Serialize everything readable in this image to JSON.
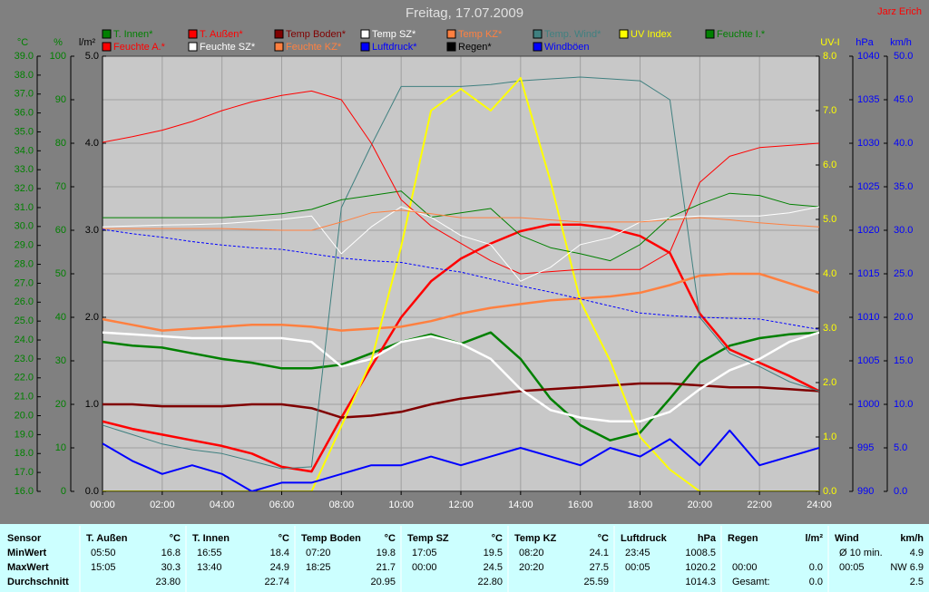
{
  "chart_data": {
    "type": "line",
    "title": "Freitag, 17.07.2009",
    "author": "Jarz Erich",
    "x": [
      0,
      1,
      2,
      3,
      4,
      5,
      6,
      7,
      8,
      9,
      10,
      11,
      12,
      13,
      14,
      15,
      16,
      17,
      18,
      19,
      20,
      21,
      22,
      23,
      24
    ],
    "xlim": [
      0,
      24
    ],
    "xticks": [
      {
        "value": 0,
        "label": "00:00"
      },
      {
        "value": 2,
        "label": "02:00"
      },
      {
        "value": 4,
        "label": "04:00"
      },
      {
        "value": 6,
        "label": "06:00"
      },
      {
        "value": 8,
        "label": "08:00"
      },
      {
        "value": 10,
        "label": "10:00"
      },
      {
        "value": 12,
        "label": "12:00"
      },
      {
        "value": 14,
        "label": "14:00"
      },
      {
        "value": 16,
        "label": "16:00"
      },
      {
        "value": 18,
        "label": "18:00"
      },
      {
        "value": 20,
        "label": "20:00"
      },
      {
        "value": 22,
        "label": "22:00"
      },
      {
        "value": 24,
        "label": "24:00"
      }
    ],
    "grid": true,
    "ylabel": "°C",
    "ycolor": "#008000",
    "ylim": [
      16,
      39
    ],
    "yticks": [
      {
        "value": 16,
        "label": "16.0"
      },
      {
        "value": 17,
        "label": "17.0"
      },
      {
        "value": 18,
        "label": "18.0"
      },
      {
        "value": 19,
        "label": "19.0"
      },
      {
        "value": 20,
        "label": "20.0"
      },
      {
        "value": 21,
        "label": "21.0"
      },
      {
        "value": 22,
        "label": "22.0"
      },
      {
        "value": 23,
        "label": "23.0"
      },
      {
        "value": 24,
        "label": "24.0"
      },
      {
        "value": 25,
        "label": "25.0"
      },
      {
        "value": 26,
        "label": "26.0"
      },
      {
        "value": 27,
        "label": "27.0"
      },
      {
        "value": 28,
        "label": "28.0"
      },
      {
        "value": 29,
        "label": "29.0"
      },
      {
        "value": 30,
        "label": "30.0"
      },
      {
        "value": 31,
        "label": "31.0"
      },
      {
        "value": 32,
        "label": "32.0"
      },
      {
        "value": 33,
        "label": "33.0"
      },
      {
        "value": 34,
        "label": "34.0"
      },
      {
        "value": 35,
        "label": "35.0"
      },
      {
        "value": 36,
        "label": "36.0"
      },
      {
        "value": 37,
        "label": "37.0"
      },
      {
        "value": 38,
        "label": "38.0"
      },
      {
        "value": 39,
        "label": "39.0"
      }
    ],
    "y2label": "%",
    "y2color": "#008000",
    "y2lim": [
      0,
      100
    ],
    "y2ticks": [
      0,
      10,
      20,
      30,
      40,
      50,
      60,
      70,
      80,
      90,
      100
    ],
    "y3label": "l/m²",
    "y3color": "#000000",
    "y3lim": [
      0,
      5
    ],
    "y3ticks": [
      {
        "value": 0,
        "label": "0.0"
      },
      {
        "value": 1,
        "label": "1.0"
      },
      {
        "value": 2,
        "label": "2.0"
      },
      {
        "value": 3,
        "label": "3.0"
      },
      {
        "value": 4,
        "label": "4.0"
      },
      {
        "value": 5,
        "label": "5.0"
      }
    ],
    "y4label": "UV-I",
    "y4color": "#ffff00",
    "y4lim": [
      0,
      8
    ],
    "y4ticks": [
      {
        "value": 0,
        "label": "0.0"
      },
      {
        "value": 1,
        "label": "1.0"
      },
      {
        "value": 2,
        "label": "2.0"
      },
      {
        "value": 3,
        "label": "3.0"
      },
      {
        "value": 4,
        "label": "4.0"
      },
      {
        "value": 5,
        "label": "5.0"
      },
      {
        "value": 6,
        "label": "6.0"
      },
      {
        "value": 7,
        "label": "7.0"
      },
      {
        "value": 8,
        "label": "8.0"
      }
    ],
    "y5label": "hPa",
    "y5color": "#0000ff",
    "y5lim": [
      990,
      1040
    ],
    "y5ticks": [
      990,
      995,
      1000,
      1005,
      1010,
      1015,
      1020,
      1025,
      1030,
      1035,
      1040
    ],
    "y6label": "km/h",
    "y6color": "#0000ff",
    "y6lim": [
      0,
      50
    ],
    "y6ticks": [
      {
        "value": 0,
        "label": "0.0"
      },
      {
        "value": 5,
        "label": "5.0"
      },
      {
        "value": 10,
        "label": "10.0"
      },
      {
        "value": 15,
        "label": "15.0"
      },
      {
        "value": 20,
        "label": "20.0"
      },
      {
        "value": 25,
        "label": "25.0"
      },
      {
        "value": 30,
        "label": "30.0"
      },
      {
        "value": 35,
        "label": "35.0"
      },
      {
        "value": 40,
        "label": "40.0"
      },
      {
        "value": 45,
        "label": "45.0"
      },
      {
        "value": 50,
        "label": "50.0"
      }
    ],
    "series": [
      {
        "name": "T. Innen*",
        "color": "#008000",
        "axis": "y",
        "linewidth": 2.5,
        "values": [
          23.9,
          23.7,
          23.6,
          23.3,
          23.0,
          22.8,
          22.5,
          22.5,
          22.7,
          23.3,
          23.9,
          24.3,
          23.8,
          24.4,
          23.0,
          20.9,
          19.5,
          18.7,
          19.1,
          20.9,
          22.8,
          23.7,
          24.1,
          24.3,
          24.4
        ]
      },
      {
        "name": "T. Außen*",
        "color": "#ff0000",
        "axis": "y",
        "linewidth": 2.5,
        "values": [
          19.7,
          19.3,
          19.0,
          18.7,
          18.4,
          18.0,
          17.3,
          17.05,
          19.9,
          22.6,
          25.2,
          27.1,
          28.3,
          29.1,
          29.75,
          30.1,
          30.1,
          29.9,
          29.5,
          28.6,
          25.4,
          23.5,
          22.8,
          22.1,
          21.3
        ]
      },
      {
        "name": "Temp Boden*",
        "color": "#800000",
        "axis": "y",
        "linewidth": 2.5,
        "values": [
          20.6,
          20.6,
          20.5,
          20.5,
          20.5,
          20.6,
          20.6,
          20.4,
          19.9,
          20.0,
          20.2,
          20.6,
          20.9,
          21.1,
          21.3,
          21.4,
          21.5,
          21.6,
          21.7,
          21.7,
          21.6,
          21.5,
          21.5,
          21.4,
          21.3
        ]
      },
      {
        "name": "Temp SZ*",
        "color": "#ffffff",
        "axis": "y",
        "linewidth": 2.5,
        "values": [
          24.4,
          24.3,
          24.2,
          24.1,
          24.1,
          24.1,
          24.1,
          23.9,
          22.6,
          23.0,
          23.9,
          24.2,
          23.8,
          23.0,
          21.4,
          20.3,
          19.9,
          19.7,
          19.7,
          20.2,
          21.4,
          22.4,
          23.0,
          23.9,
          24.4
        ]
      },
      {
        "name": "Temp KZ*",
        "color": "#ff8040",
        "axis": "y",
        "linewidth": 2.5,
        "values": [
          25.1,
          24.8,
          24.5,
          24.6,
          24.7,
          24.8,
          24.8,
          24.7,
          24.5,
          24.6,
          24.7,
          25.0,
          25.4,
          25.7,
          25.9,
          26.1,
          26.2,
          26.3,
          26.5,
          26.9,
          27.4,
          27.5,
          27.5,
          27.0,
          26.5
        ]
      },
      {
        "name": "Temp. Wind*",
        "color": "#408080",
        "axis": "y",
        "linewidth": 1,
        "values": [
          19.5,
          19.0,
          18.5,
          18.2,
          18.0,
          17.6,
          17.2,
          17.3,
          31.0,
          34.3,
          37.4,
          37.4,
          37.4,
          37.5,
          37.7,
          37.8,
          37.9,
          37.8,
          37.7,
          36.7,
          25.2,
          23.3,
          22.6,
          21.8,
          21.3
        ]
      },
      {
        "name": "UV Index",
        "color": "#ffff00",
        "axis": "y4",
        "linewidth": 2,
        "values": [
          0,
          0,
          0,
          0,
          0,
          0,
          0,
          0,
          1.2,
          2.4,
          4.5,
          7.0,
          7.4,
          7.0,
          7.6,
          5.7,
          3.5,
          2.4,
          1.0,
          0.4,
          0,
          0,
          0,
          0,
          0
        ]
      },
      {
        "name": "Feuchte I.*",
        "color": "#008000",
        "axis": "y2",
        "linewidth": 1,
        "values": [
          62.9,
          62.9,
          62.9,
          62.9,
          62.9,
          63.3,
          63.8,
          64.8,
          67.0,
          68.0,
          69.0,
          63.0,
          64.0,
          65.0,
          58.8,
          56.0,
          54.6,
          53.0,
          56.7,
          63.0,
          66.0,
          68.5,
          68.0,
          66.0,
          65.4
        ]
      },
      {
        "name": "Feuchte A.*",
        "color": "#ff0000",
        "axis": "y2",
        "linewidth": 1,
        "values": [
          80.2,
          81.5,
          83.0,
          85.0,
          87.5,
          89.5,
          91.0,
          92.0,
          90.0,
          80.0,
          67.0,
          61.0,
          57.0,
          53.0,
          50.0,
          50.5,
          51.0,
          51.0,
          51.0,
          55.0,
          71.0,
          77.0,
          79.0,
          79.5,
          80.0
        ]
      },
      {
        "name": "Feuchte SZ*",
        "color": "#ffffff",
        "axis": "y2",
        "linewidth": 1,
        "values": [
          60.8,
          61.0,
          61.2,
          61.3,
          61.5,
          62.0,
          62.5,
          63.3,
          54.6,
          60.8,
          65.4,
          63.0,
          58.8,
          56.7,
          48.3,
          51.5,
          56.7,
          58.3,
          61.9,
          62.9,
          63.3,
          63.3,
          63.3,
          64.0,
          65.4
        ]
      },
      {
        "name": "Feuchte KZ*",
        "color": "#ff8040",
        "axis": "y2",
        "linewidth": 1,
        "values": [
          60.4,
          60.4,
          60.4,
          60.4,
          60.4,
          60.2,
          60.0,
          60.0,
          61.9,
          64.0,
          64.6,
          63.8,
          62.9,
          62.9,
          62.9,
          62.4,
          61.9,
          61.9,
          61.9,
          62.4,
          62.9,
          62.4,
          61.7,
          61.2,
          60.8
        ]
      },
      {
        "name": "Luftdruck*",
        "color": "#0000ff",
        "axis": "y5",
        "linewidth": 1,
        "linestyle": "dashed",
        "values": [
          1020.1,
          1019.6,
          1019.2,
          1018.7,
          1018.3,
          1018.0,
          1017.8,
          1017.3,
          1016.8,
          1016.5,
          1016.3,
          1015.7,
          1015.2,
          1014.4,
          1013.6,
          1012.9,
          1012.1,
          1011.3,
          1010.5,
          1010.2,
          1010.0,
          1009.9,
          1009.8,
          1009.2,
          1008.6
        ]
      },
      {
        "name": "Regen*",
        "color": "#000000",
        "axis": "y3",
        "linewidth": 1,
        "values": [
          0,
          0,
          0,
          0,
          0,
          0,
          0,
          0,
          0,
          0,
          0,
          0,
          0,
          0,
          0,
          0,
          0,
          0,
          0,
          0,
          0,
          0,
          0,
          0,
          0
        ]
      },
      {
        "name": "Windböen",
        "color": "#0000ff",
        "axis": "y6",
        "linewidth": 2,
        "values": [
          5.5,
          3.5,
          2,
          3,
          2,
          0,
          1,
          1,
          2,
          3,
          3,
          4,
          3,
          4,
          5,
          4,
          3,
          5,
          4,
          6,
          3,
          7,
          3,
          4,
          5
        ]
      }
    ]
  },
  "table": {
    "header": [
      "Sensor",
      "T. Außen",
      "°C",
      "T. Innen",
      "°C",
      "Temp Boden",
      "°C",
      "Temp SZ",
      "°C",
      "Temp KZ",
      "°C",
      "Luftdruck",
      "hPa",
      "Regen",
      "l/m²",
      "Wind",
      "km/h"
    ],
    "rows": [
      [
        "MinWert",
        "05:50",
        "16.8",
        "16:55",
        "18.4",
        "07:20",
        "19.8",
        "17:05",
        "19.5",
        "08:20",
        "24.1",
        "23:45",
        "1008.5",
        null,
        null,
        "Ø 10 min.",
        "4.9"
      ],
      [
        "MaxWert",
        "15:05",
        "30.3",
        "13:40",
        "24.9",
        "18:25",
        "21.7",
        "00:00",
        "24.5",
        "20:20",
        "27.5",
        "00:05",
        "1020.2",
        "00:00",
        "0.0",
        "00:05",
        "NW 6.9"
      ],
      [
        "Durchschnitt",
        null,
        "23.80",
        null,
        "22.74",
        null,
        "20.95",
        null,
        "22.80",
        null,
        "25.59",
        null,
        "1014.3",
        "Gesamt:",
        "0.0",
        null,
        "2.5"
      ]
    ]
  }
}
